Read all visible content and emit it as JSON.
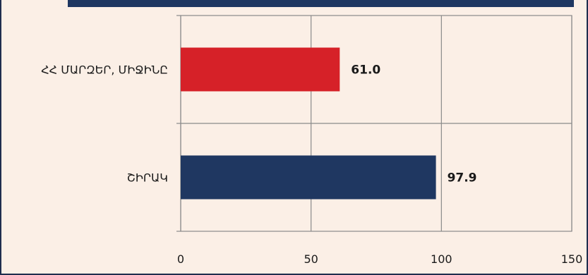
{
  "chart_data": {
    "type": "bar",
    "orientation": "horizontal",
    "categories": [
      "ՀՀ ՄԱՐԶԵՐ, ՄԻՋԻՆԸ",
      "ՇԻՐԱԿ"
    ],
    "values": [
      61.0,
      97.9
    ],
    "value_labels": [
      "61.0",
      "97.9"
    ],
    "bar_colors": [
      "#d62128",
      "#1f3761"
    ],
    "xlim": [
      0,
      150
    ],
    "x_ticks": [
      0,
      50,
      100,
      150
    ],
    "x_tick_labels": [
      "0",
      "50",
      "100",
      "150"
    ],
    "grid": true,
    "title": "",
    "xlabel": "",
    "ylabel": ""
  },
  "colors": {
    "background": "#fbefe6",
    "accent_bar": "#1f3761",
    "grid": "#8a8a8a"
  }
}
